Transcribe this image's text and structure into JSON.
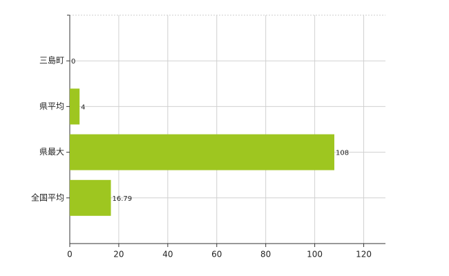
{
  "chart_data": {
    "type": "barh",
    "categories": [
      "三島町",
      "県平均",
      "県最大",
      "全国平均"
    ],
    "values": [
      0,
      4,
      108,
      16.79
    ],
    "color": "#9ec620",
    "xlim": [
      0,
      130
    ],
    "xticks": [
      0,
      20,
      40,
      60,
      80,
      100,
      120
    ],
    "grid": true,
    "value_labels_shown": true
  }
}
